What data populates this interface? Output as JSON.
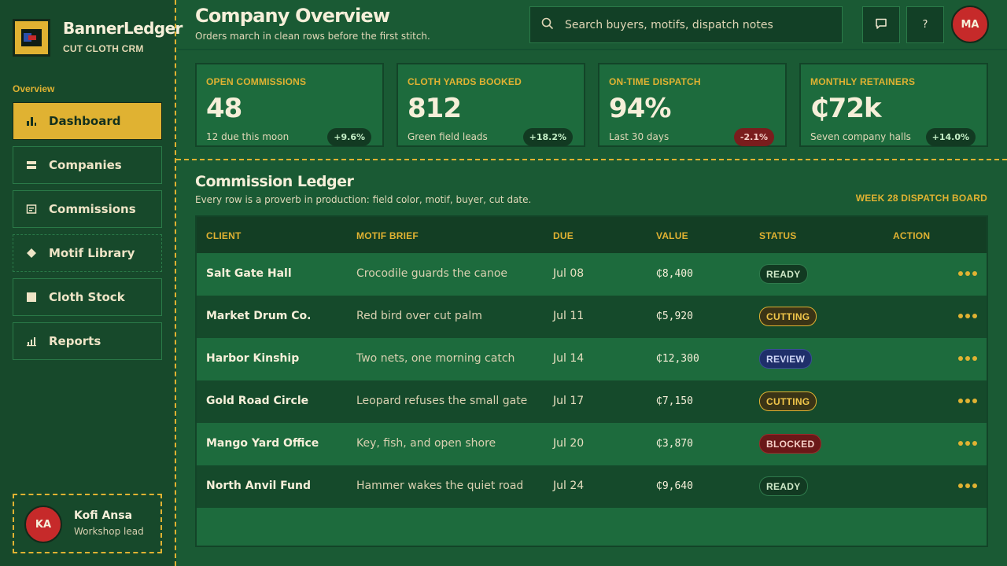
{
  "app": {
    "brand_name": "BannerLedger",
    "brand_subtitle": "CUT CLOTH CRM"
  },
  "sidebar": {
    "section_label": "Overview",
    "items": [
      {
        "label": "Dashboard",
        "icon": "bar-chart-icon",
        "active": true
      },
      {
        "label": "Companies",
        "icon": "layers-icon"
      },
      {
        "label": "Commissions",
        "icon": "document-icon"
      },
      {
        "label": "Motif Library",
        "icon": "diamond-icon"
      },
      {
        "label": "Cloth Stock",
        "icon": "square-icon"
      },
      {
        "label": "Reports",
        "icon": "reports-icon"
      }
    ],
    "user": {
      "initials": "KA",
      "name": "Kofi Ansa",
      "role": "Workshop lead"
    }
  },
  "header": {
    "title": "Company Overview",
    "subtitle": "Orders march in clean rows before the first stitch.",
    "search_placeholder": "Search buyers, motifs, dispatch notes",
    "help_glyph": "?",
    "user_initials": "MA"
  },
  "kpis": [
    {
      "label": "OPEN COMMISSIONS",
      "value": "48",
      "note": "12 due this moon",
      "delta": "+9.6%",
      "trend": "up"
    },
    {
      "label": "CLOTH YARDS BOOKED",
      "value": "812",
      "note": "Green field leads",
      "delta": "+18.2%",
      "trend": "up"
    },
    {
      "label": "ON-TIME DISPATCH",
      "value": "94%",
      "note": "Last 30 days",
      "delta": "-2.1%",
      "trend": "down"
    },
    {
      "label": "MONTHLY RETAINERS",
      "value": "₵72k",
      "note": "Seven company halls",
      "delta": "+14.0%",
      "trend": "up"
    }
  ],
  "ledger": {
    "title": "Commission Ledger",
    "subtitle": "Every row is a proverb in production: field color, motif, buyer, cut date.",
    "board_label": "WEEK 28 DISPATCH BOARD",
    "columns": [
      "CLIENT",
      "MOTIF BRIEF",
      "DUE",
      "VALUE",
      "STATUS",
      "ACTION"
    ],
    "rows": [
      {
        "client": "Salt Gate Hall",
        "motif": "Crocodile guards the canoe",
        "due": "Jul 08",
        "value": "₵8,400",
        "status": "READY"
      },
      {
        "client": "Market Drum Co.",
        "motif": "Red bird over cut palm",
        "due": "Jul 11",
        "value": "₵5,920",
        "status": "CUTTING"
      },
      {
        "client": "Harbor Kinship",
        "motif": "Two nets, one morning catch",
        "due": "Jul 14",
        "value": "₵12,300",
        "status": "REVIEW"
      },
      {
        "client": "Gold Road Circle",
        "motif": "Leopard refuses the small gate",
        "due": "Jul 17",
        "value": "₵7,150",
        "status": "CUTTING"
      },
      {
        "client": "Mango Yard Office",
        "motif": "Key, fish, and open shore",
        "due": "Jul 20",
        "value": "₵3,870",
        "status": "BLOCKED"
      },
      {
        "client": "North Anvil Fund",
        "motif": "Hammer wakes the quiet road",
        "due": "Jul 24",
        "value": "₵9,640",
        "status": "READY"
      }
    ]
  },
  "colors": {
    "background": "#1a5a34",
    "sidebar": "#17492b",
    "accent_gold": "#e0b232",
    "alert_red": "#c62a2a",
    "text_cream": "#f6efd9"
  }
}
